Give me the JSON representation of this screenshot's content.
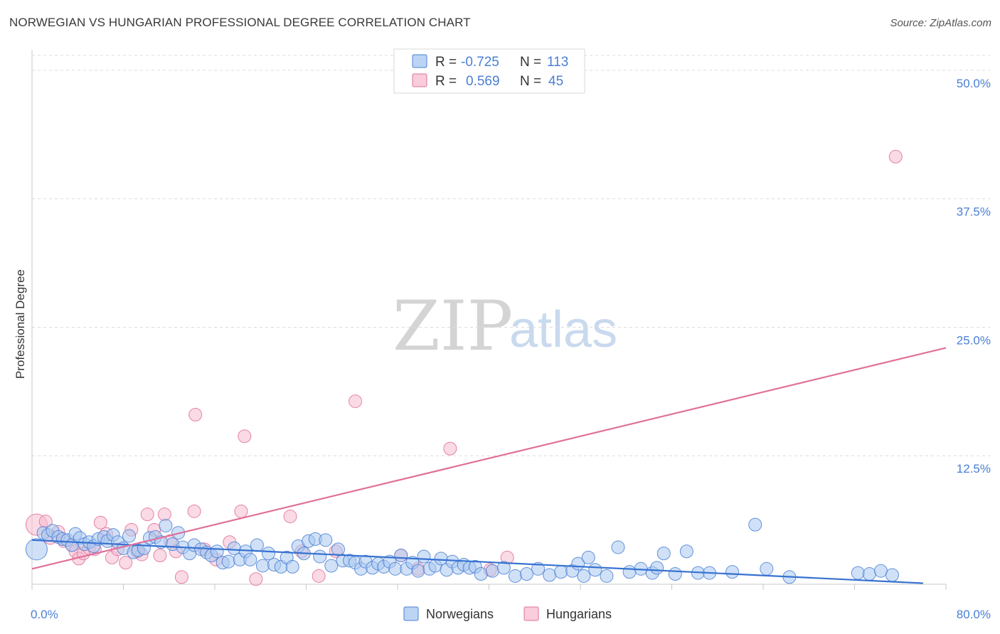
{
  "title": "NORWEGIAN VS HUNGARIAN PROFESSIONAL DEGREE CORRELATION CHART",
  "source": "Source: ZipAtlas.com",
  "watermark": {
    "zip": "ZIP",
    "atlas": "atlas"
  },
  "colors": {
    "blue": "#4a7fd4",
    "blue_fill": "#a9c8f0",
    "blue_line": "#3672d1",
    "pink": "#e07098",
    "pink_fill": "#f6bccf",
    "pink_line": "#e0709a",
    "grid": "#dcdcdc",
    "axis_text": "#4a7fd4"
  },
  "legend_top": {
    "rows": [
      {
        "r_label": "R =",
        "r_value": "-0.725",
        "n_label": "N =",
        "n_value": "113",
        "series": "Norwegians"
      },
      {
        "r_label": "R =",
        "r_value": "0.569",
        "n_label": "N =",
        "n_value": "45",
        "series": "Hungarians"
      }
    ]
  },
  "chart_data": {
    "type": "scatter",
    "title": "NORWEGIAN VS HUNGARIAN PROFESSIONAL DEGREE CORRELATION CHART",
    "xlabel": "",
    "ylabel": "Professional Degree",
    "xlim": [
      0,
      80
    ],
    "ylim": [
      0,
      52
    ],
    "x_tick_labels": [
      {
        "value": 0,
        "label": "0.0%"
      },
      {
        "value": 80,
        "label": "80.0%"
      }
    ],
    "y_tick_labels": [
      {
        "value": 12.5,
        "label": "12.5%"
      },
      {
        "value": 25,
        "label": "25.0%"
      },
      {
        "value": 37.5,
        "label": "37.5%"
      },
      {
        "value": 50,
        "label": "50.0%"
      }
    ],
    "legend": [
      "Norwegians",
      "Hungarians"
    ],
    "series": [
      {
        "name": "Norwegians",
        "color": "#4a7fd4",
        "trend": {
          "x": [
            0,
            78
          ],
          "y": [
            4.3,
            0.1
          ]
        },
        "points": [
          [
            0.4,
            3.4
          ],
          [
            1.0,
            5.0
          ],
          [
            1.4,
            4.8
          ],
          [
            1.8,
            5.2
          ],
          [
            2.3,
            4.6
          ],
          [
            2.7,
            4.4
          ],
          [
            3.1,
            4.3
          ],
          [
            3.5,
            3.8
          ],
          [
            3.8,
            4.9
          ],
          [
            4.2,
            4.5
          ],
          [
            4.6,
            3.9
          ],
          [
            5.0,
            4.1
          ],
          [
            5.4,
            3.7
          ],
          [
            5.8,
            4.4
          ],
          [
            6.3,
            4.6
          ],
          [
            6.6,
            4.2
          ],
          [
            7.1,
            4.8
          ],
          [
            7.5,
            4.1
          ],
          [
            8.0,
            3.5
          ],
          [
            8.5,
            4.7
          ],
          [
            8.9,
            3.1
          ],
          [
            9.3,
            3.3
          ],
          [
            9.8,
            3.5
          ],
          [
            10.3,
            4.5
          ],
          [
            10.8,
            4.6
          ],
          [
            11.3,
            4.1
          ],
          [
            11.7,
            5.7
          ],
          [
            12.3,
            3.9
          ],
          [
            12.8,
            5.0
          ],
          [
            13.2,
            3.6
          ],
          [
            13.8,
            3.0
          ],
          [
            14.2,
            3.8
          ],
          [
            14.8,
            3.4
          ],
          [
            15.3,
            3.1
          ],
          [
            15.7,
            2.8
          ],
          [
            16.2,
            3.2
          ],
          [
            16.7,
            2.1
          ],
          [
            17.2,
            2.2
          ],
          [
            17.7,
            3.5
          ],
          [
            18.2,
            2.4
          ],
          [
            18.7,
            3.2
          ],
          [
            19.1,
            2.4
          ],
          [
            19.7,
            3.8
          ],
          [
            20.2,
            1.8
          ],
          [
            20.7,
            3.0
          ],
          [
            21.2,
            1.9
          ],
          [
            21.8,
            1.7
          ],
          [
            22.3,
            2.6
          ],
          [
            22.8,
            1.7
          ],
          [
            23.3,
            3.7
          ],
          [
            23.8,
            3.0
          ],
          [
            24.2,
            4.2
          ],
          [
            24.8,
            4.4
          ],
          [
            25.2,
            2.7
          ],
          [
            25.7,
            4.3
          ],
          [
            26.2,
            1.8
          ],
          [
            26.8,
            3.4
          ],
          [
            27.2,
            2.3
          ],
          [
            27.8,
            2.3
          ],
          [
            28.3,
            2.1
          ],
          [
            28.8,
            1.5
          ],
          [
            29.2,
            2.2
          ],
          [
            29.8,
            1.6
          ],
          [
            30.3,
            2.0
          ],
          [
            30.8,
            1.7
          ],
          [
            31.3,
            2.2
          ],
          [
            31.8,
            1.5
          ],
          [
            32.3,
            2.8
          ],
          [
            32.8,
            1.5
          ],
          [
            33.3,
            2.1
          ],
          [
            33.8,
            1.3
          ],
          [
            34.3,
            2.7
          ],
          [
            34.8,
            1.5
          ],
          [
            35.3,
            1.8
          ],
          [
            35.8,
            2.5
          ],
          [
            36.3,
            1.4
          ],
          [
            36.8,
            2.2
          ],
          [
            37.3,
            1.6
          ],
          [
            37.8,
            1.9
          ],
          [
            38.3,
            1.6
          ],
          [
            38.8,
            1.7
          ],
          [
            39.3,
            1.0
          ],
          [
            40.3,
            1.3
          ],
          [
            41.3,
            1.6
          ],
          [
            42.3,
            0.8
          ],
          [
            43.3,
            1.0
          ],
          [
            44.3,
            1.5
          ],
          [
            45.3,
            0.9
          ],
          [
            46.3,
            1.2
          ],
          [
            47.3,
            1.3
          ],
          [
            47.8,
            2.0
          ],
          [
            48.3,
            0.8
          ],
          [
            48.7,
            2.6
          ],
          [
            49.3,
            1.4
          ],
          [
            50.3,
            0.8
          ],
          [
            51.3,
            3.6
          ],
          [
            52.3,
            1.2
          ],
          [
            53.3,
            1.5
          ],
          [
            54.3,
            1.1
          ],
          [
            54.7,
            1.6
          ],
          [
            55.3,
            3.0
          ],
          [
            56.3,
            1.0
          ],
          [
            57.3,
            3.2
          ],
          [
            58.3,
            1.1
          ],
          [
            59.3,
            1.1
          ],
          [
            61.3,
            1.2
          ],
          [
            63.3,
            5.8
          ],
          [
            64.3,
            1.5
          ],
          [
            66.3,
            0.7
          ],
          [
            72.3,
            1.1
          ],
          [
            73.3,
            1.0
          ],
          [
            74.3,
            1.3
          ],
          [
            75.3,
            0.9
          ]
        ]
      },
      {
        "name": "Hungarians",
        "color": "#e07098",
        "trend": {
          "x": [
            0,
            80
          ],
          "y": [
            1.5,
            23.0
          ]
        },
        "points": [
          [
            0.4,
            5.8
          ],
          [
            1.2,
            6.1
          ],
          [
            1.6,
            4.5
          ],
          [
            2.3,
            5.1
          ],
          [
            2.8,
            4.2
          ],
          [
            3.5,
            3.8
          ],
          [
            3.8,
            3.2
          ],
          [
            4.1,
            2.5
          ],
          [
            4.5,
            3.0
          ],
          [
            5.0,
            3.5
          ],
          [
            5.5,
            3.4
          ],
          [
            6.0,
            6.0
          ],
          [
            6.5,
            4.9
          ],
          [
            7.0,
            2.6
          ],
          [
            7.5,
            3.4
          ],
          [
            8.2,
            2.1
          ],
          [
            8.7,
            5.3
          ],
          [
            9.2,
            3.2
          ],
          [
            9.6,
            2.9
          ],
          [
            10.1,
            6.8
          ],
          [
            10.7,
            5.3
          ],
          [
            11.2,
            2.8
          ],
          [
            11.6,
            6.8
          ],
          [
            12.1,
            4.2
          ],
          [
            12.6,
            3.2
          ],
          [
            13.1,
            0.7
          ],
          [
            14.2,
            7.1
          ],
          [
            14.3,
            16.5
          ],
          [
            15.1,
            3.4
          ],
          [
            16.1,
            2.4
          ],
          [
            17.3,
            4.1
          ],
          [
            18.3,
            7.1
          ],
          [
            18.6,
            14.4
          ],
          [
            19.6,
            0.5
          ],
          [
            22.6,
            6.6
          ],
          [
            23.6,
            3.2
          ],
          [
            25.1,
            0.8
          ],
          [
            26.6,
            3.2
          ],
          [
            28.3,
            17.8
          ],
          [
            32.3,
            2.8
          ],
          [
            33.8,
            1.5
          ],
          [
            36.6,
            13.2
          ],
          [
            40.1,
            1.4
          ],
          [
            41.6,
            2.6
          ],
          [
            75.6,
            41.6
          ]
        ]
      }
    ]
  },
  "legend_bottom": [
    {
      "label": "Norwegians",
      "series": "Norwegians"
    },
    {
      "label": "Hungarians",
      "series": "Hungarians"
    }
  ]
}
